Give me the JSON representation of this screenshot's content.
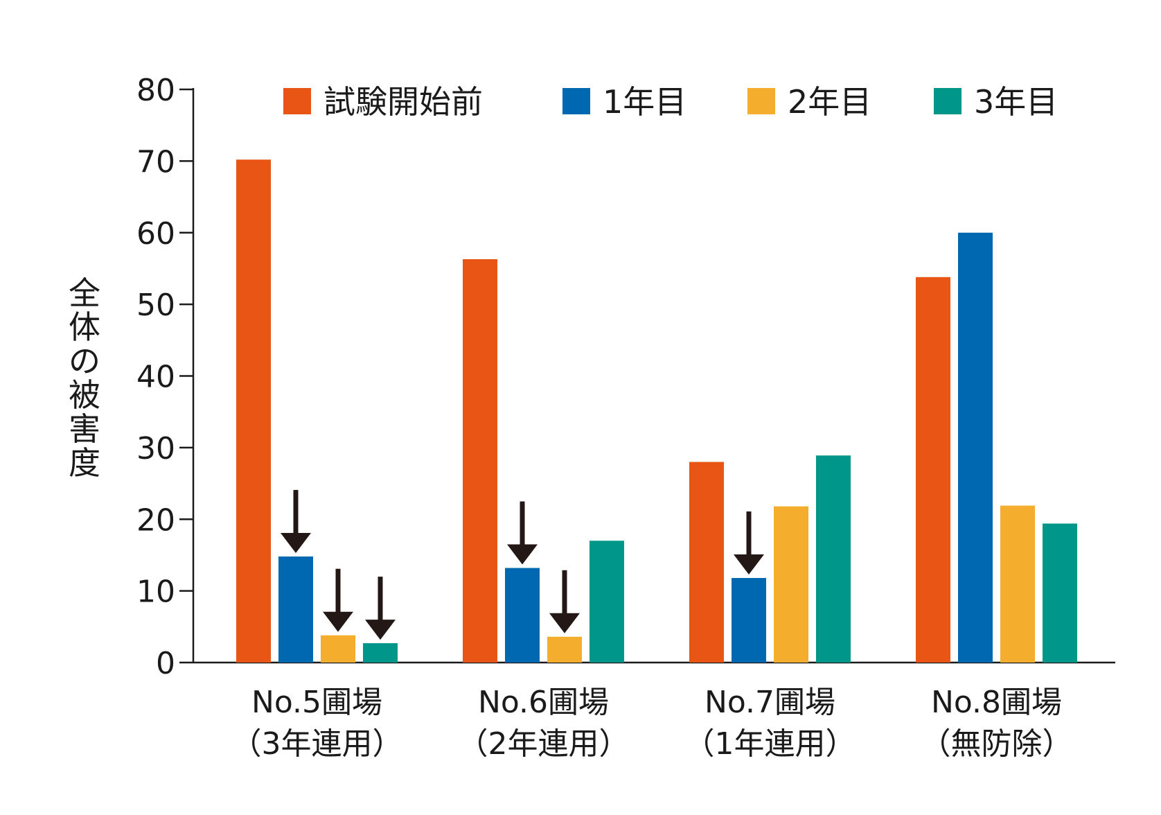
{
  "chart_data": {
    "type": "bar",
    "title": "",
    "xlabel": "",
    "ylabel": "全体の被害度",
    "ylim": [
      0,
      80
    ],
    "yticks": [
      0,
      10,
      20,
      30,
      40,
      50,
      60,
      70,
      80
    ],
    "grid": false,
    "legend_position": "top",
    "categories": [
      [
        "No.5圃場",
        "（3年連用）"
      ],
      [
        "No.6圃場",
        "（2年連用）"
      ],
      [
        "No.7圃場",
        "（1年連用）"
      ],
      [
        "No.8圃場",
        "（無防除）"
      ]
    ],
    "series": [
      {
        "name": "試験開始前",
        "color": "#e85514",
        "values": [
          70.2,
          56.3,
          28.0,
          53.8
        ]
      },
      {
        "name": "1年目",
        "color": "#0068b0",
        "values": [
          14.8,
          13.2,
          11.8,
          60.0
        ]
      },
      {
        "name": "2年目",
        "color": "#f5ad2e",
        "values": [
          3.8,
          3.6,
          21.8,
          21.9
        ]
      },
      {
        "name": "3年目",
        "color": "#00968a",
        "values": [
          2.7,
          17.0,
          28.9,
          19.4
        ]
      }
    ],
    "arrows": [
      {
        "category": 0,
        "series": 1
      },
      {
        "category": 0,
        "series": 2
      },
      {
        "category": 0,
        "series": 3
      },
      {
        "category": 1,
        "series": 1
      },
      {
        "category": 1,
        "series": 2
      },
      {
        "category": 2,
        "series": 1
      }
    ],
    "arrow_color": "#231815"
  }
}
